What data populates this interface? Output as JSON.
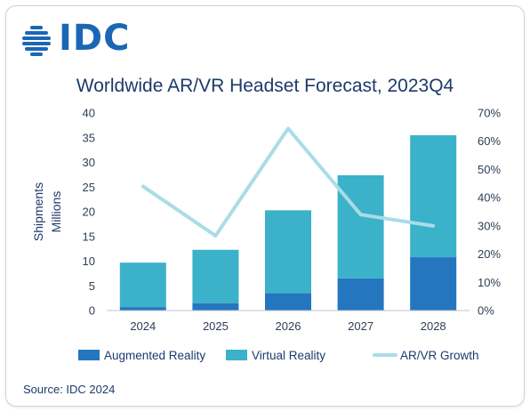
{
  "brand": {
    "logo_text": "IDC",
    "logo_color": "#1b67b6"
  },
  "chart_data": {
    "type": "bar",
    "title": "Worldwide AR/VR Headset Forecast, 2023Q4",
    "ylabel_lines": [
      "Shipments",
      "Millions"
    ],
    "categories": [
      "2024",
      "2025",
      "2026",
      "2027",
      "2028"
    ],
    "stacked": true,
    "ylim": [
      0,
      40
    ],
    "y_ticks": [
      0,
      5,
      10,
      15,
      20,
      25,
      30,
      35,
      40
    ],
    "y2lim": [
      0,
      0.7
    ],
    "y2_ticks": [
      "0%",
      "10%",
      "20%",
      "30%",
      "40%",
      "50%",
      "60%",
      "70%"
    ],
    "series": [
      {
        "name": "Augmented Reality",
        "type": "bar",
        "axis": "left",
        "values": [
          0.7,
          1.5,
          3.5,
          6.5,
          10.8
        ],
        "color": "#2476be"
      },
      {
        "name": "Virtual Reality",
        "type": "bar",
        "axis": "left",
        "values": [
          9.0,
          10.8,
          16.8,
          20.9,
          24.7
        ],
        "color": "#3cb1ca"
      },
      {
        "name": "AR/VR Growth",
        "type": "line",
        "axis": "right",
        "values": [
          0.44,
          0.265,
          0.645,
          0.34,
          0.3
        ],
        "color": "#a9dce8"
      }
    ],
    "grid": false,
    "legend_position": "bottom"
  },
  "footer": {
    "source": "Source: IDC 2024"
  }
}
